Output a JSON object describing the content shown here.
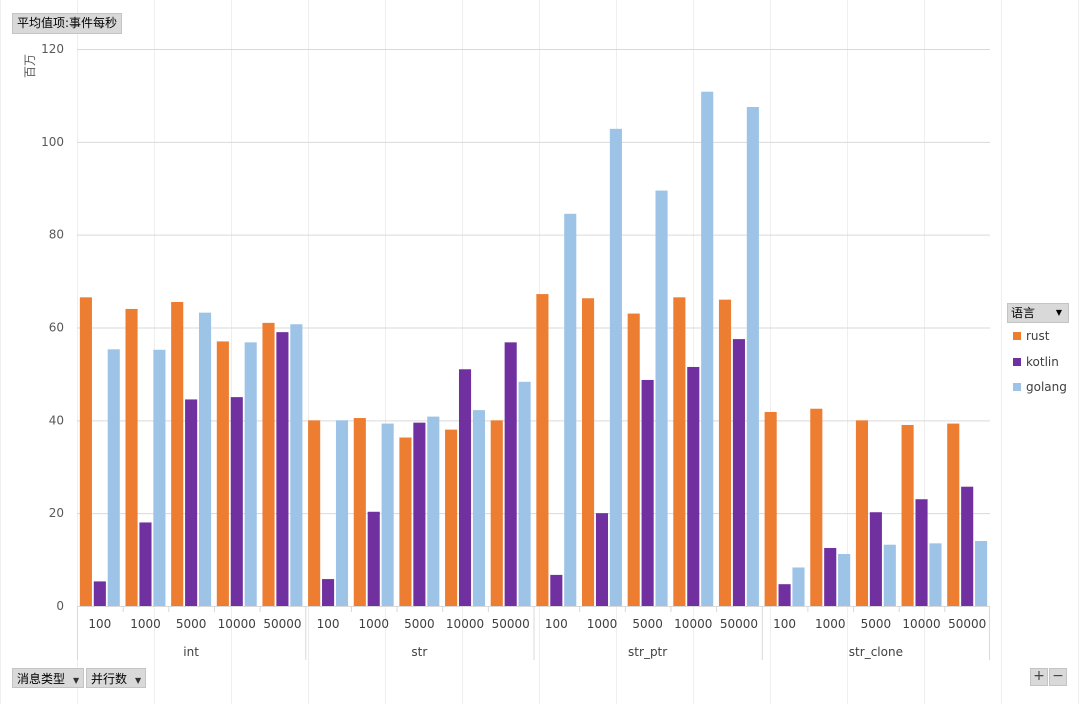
{
  "value_field": "平均值项:事件每秒",
  "filters": [
    {
      "label": "消息类型",
      "icon": "dropdown-arrow-icon"
    },
    {
      "label": "并行数",
      "icon": "dropdown-arrow-icon"
    }
  ],
  "legend_field": "语言",
  "zoom": {
    "plus": "+",
    "minus": "−"
  },
  "chart_data": {
    "type": "bar",
    "ylabel": "百万",
    "ylim": [
      0,
      120
    ],
    "yticks": [
      0,
      20,
      40,
      60,
      80,
      100,
      120
    ],
    "grid": true,
    "legend_position": "right",
    "groups": [
      {
        "label": "int",
        "categories": [
          "100",
          "1000",
          "5000",
          "10000",
          "50000"
        ]
      },
      {
        "label": "str",
        "categories": [
          "100",
          "1000",
          "5000",
          "10000",
          "50000"
        ]
      },
      {
        "label": "str_ptr",
        "categories": [
          "100",
          "1000",
          "5000",
          "10000",
          "50000"
        ]
      },
      {
        "label": "str_clone",
        "categories": [
          "100",
          "1000",
          "5000",
          "10000",
          "50000"
        ]
      }
    ],
    "series": [
      {
        "name": "rust",
        "color": "#ed7d31",
        "values": [
          66.5,
          64.0,
          65.5,
          57.0,
          61.0,
          40.0,
          40.5,
          36.3,
          38.0,
          40.0,
          67.2,
          66.3,
          63.0,
          66.5,
          66.0,
          41.8,
          42.5,
          40.0,
          39.0,
          39.3
        ]
      },
      {
        "name": "kotlin",
        "color": "#7030a0",
        "values": [
          5.3,
          18.0,
          44.5,
          45.0,
          59.0,
          5.8,
          20.3,
          39.5,
          51.0,
          56.8,
          6.7,
          20.0,
          48.7,
          51.5,
          57.5,
          4.7,
          12.5,
          20.2,
          23.0,
          25.7
        ]
      },
      {
        "name": "golang",
        "color": "#9dc3e6",
        "values": [
          55.3,
          55.2,
          63.2,
          56.8,
          60.7,
          40.0,
          39.3,
          40.8,
          42.2,
          48.3,
          84.5,
          102.8,
          89.5,
          110.8,
          107.5,
          8.3,
          11.2,
          13.2,
          13.5,
          14.0
        ]
      }
    ]
  }
}
